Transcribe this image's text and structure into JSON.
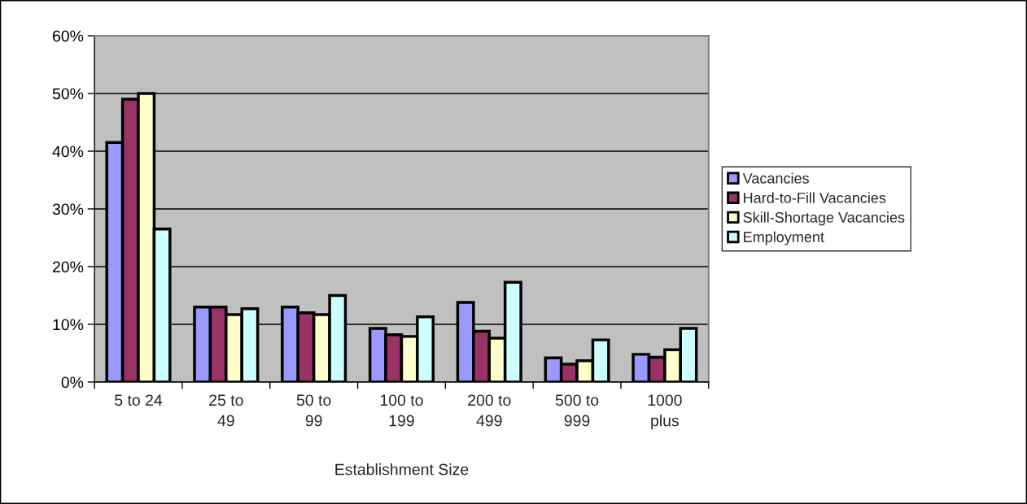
{
  "chart_data": {
    "type": "bar",
    "xlabel": "Establishment Size",
    "categories": [
      "5 to 24",
      "25 to\n49",
      "50 to\n99",
      "100 to\n199",
      "200 to\n499",
      "500 to\n999",
      "1000\nplus"
    ],
    "series": [
      {
        "name": "Vacancies",
        "color": "#9999ff",
        "values": [
          41.5,
          13,
          13,
          9.3,
          13.8,
          4.2,
          4.8
        ]
      },
      {
        "name": "Hard-to-Fill Vacancies",
        "color": "#993366",
        "values": [
          49,
          13,
          12,
          8.2,
          8.8,
          3.1,
          4.3
        ]
      },
      {
        "name": "Skill-Shortage Vacancies",
        "color": "#ffffcc",
        "values": [
          50,
          11.7,
          11.7,
          7.9,
          7.6,
          3.7,
          5.6
        ]
      },
      {
        "name": "Employment",
        "color": "#ccffff",
        "values": [
          26.5,
          12.7,
          15,
          11.3,
          17.3,
          7.3,
          9.3
        ]
      }
    ],
    "ylim": [
      0,
      60
    ],
    "yticks": [
      {
        "value": 0,
        "label": "0%"
      },
      {
        "value": 10,
        "label": "10%"
      },
      {
        "value": 20,
        "label": "20%"
      },
      {
        "value": 30,
        "label": "30%"
      },
      {
        "value": 40,
        "label": "40%"
      },
      {
        "value": 50,
        "label": "50%"
      },
      {
        "value": 60,
        "label": "60%"
      }
    ],
    "grid": "y",
    "legend": "right"
  }
}
